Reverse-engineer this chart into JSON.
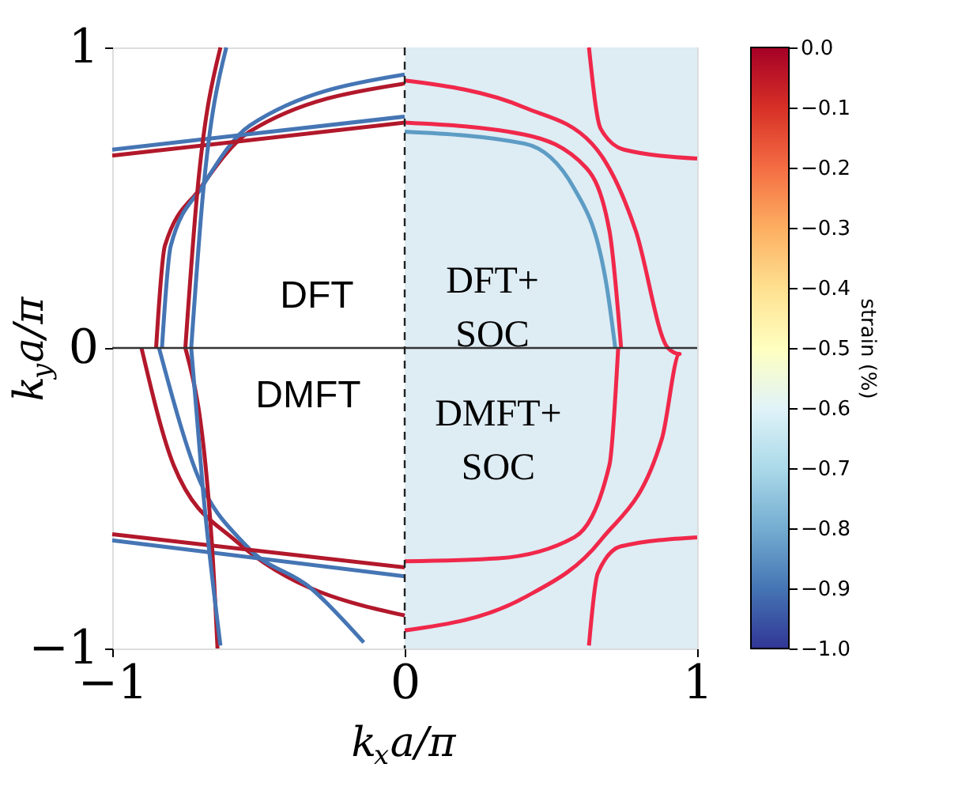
{
  "chart_data": {
    "type": "line",
    "xlabel": "k$_{x}$a/π",
    "ylabel": "k$_{y}$a/π",
    "xlim": [
      -1,
      1
    ],
    "ylim": [
      -1,
      1
    ],
    "xticks": [
      -1,
      0,
      1
    ],
    "yticks": [
      -1,
      0,
      1
    ],
    "grid": false,
    "legend": false,
    "marker": "none",
    "line_style": "solid",
    "clabel": "strain (%)",
    "clim": [
      -1,
      0
    ],
    "cticks": [
      {
        "value": 0,
        "label": "0.0"
      },
      -0.1,
      -0.2,
      -0.3,
      -0.4,
      -0.5,
      -0.6,
      -0.7,
      -0.8,
      -0.9,
      {
        "value": -1,
        "label": "−1.0"
      }
    ],
    "annotations": [
      "DFT",
      "DMFT",
      "DFT+\nSOC",
      "DMFT+\nSOC"
    ],
    "bands": [
      {
        "axis": "x",
        "from": 0,
        "to": 1,
        "color": "#deecf4"
      }
    ],
    "ref_lines": [
      {
        "axis": "y",
        "value": 0,
        "color": "#333333",
        "line_style": "solid"
      },
      {
        "axis": "x",
        "value": 0,
        "color": "#222222",
        "line_style": "dashed"
      }
    ],
    "series": [
      {
        "color": "#b2182b",
        "x": [
          0,
          -0.53,
          -0.7,
          -0.82,
          -0.85
        ],
        "values": [
          0.88,
          0.72,
          0.53,
          0.34,
          0
        ]
      },
      {
        "color": "#4575b4",
        "x": [
          0,
          -0.53,
          -0.69,
          -0.8,
          -0.83
        ],
        "values": [
          0.91,
          0.74,
          0.54,
          0.34,
          0
        ]
      },
      {
        "color": "#b2182b",
        "x": [
          -1,
          0
        ],
        "values": [
          0.64,
          0.75
        ]
      },
      {
        "color": "#4575b4",
        "x": [
          -1,
          0
        ],
        "values": [
          0.66,
          0.77
        ]
      },
      {
        "color": "#b2182b",
        "x": [
          -0.63,
          -0.71,
          -0.75
        ],
        "values": [
          1.0,
          0.51,
          0
        ]
      },
      {
        "color": "#4575b4",
        "x": [
          -0.61,
          -0.69,
          -0.73
        ],
        "values": [
          1.0,
          0.51,
          0
        ]
      },
      {
        "color": "#b2182b",
        "x": [
          -0.9,
          -0.79,
          -0.58,
          0
        ],
        "values": [
          0,
          -0.39,
          -0.64,
          -0.89
        ]
      },
      {
        "color": "#4575b4",
        "x": [
          -0.84,
          -0.71,
          -0.54,
          -0.32,
          -0.14
        ],
        "values": [
          0,
          -0.42,
          -0.66,
          -0.8,
          -0.98
        ]
      },
      {
        "color": "#b2182b",
        "x": [
          -1,
          0
        ],
        "values": [
          -0.62,
          -0.73
        ]
      },
      {
        "color": "#4575b4",
        "x": [
          -1,
          0
        ],
        "values": [
          -0.64,
          -0.76
        ]
      },
      {
        "color": "#b2182b",
        "x": [
          -0.75,
          -0.66,
          -0.64
        ],
        "values": [
          0,
          -0.64,
          -1.0
        ]
      },
      {
        "color": "#4575b4",
        "x": [
          -0.73,
          -0.69,
          -0.63
        ],
        "values": [
          0,
          -0.47,
          -0.99
        ]
      },
      {
        "color": "#5d9cc4",
        "x": [
          0,
          0.41,
          0.58,
          0.69,
          0.72
        ],
        "values": [
          0.72,
          0.68,
          0.53,
          0.21,
          0
        ]
      },
      {
        "color": "#f0284a",
        "x": [
          0,
          0.41,
          0.64,
          0.79,
          0.9,
          0.94,
          0.88,
          0.67,
          0.41,
          0
        ],
        "values": [
          0.89,
          0.8,
          0.68,
          0.39,
          0,
          -0.02,
          -0.3,
          -0.64,
          -0.83,
          -0.94
        ]
      },
      {
        "color": "#f0284a",
        "x": [
          0,
          0.41,
          0.62,
          0.7,
          0.74
        ],
        "values": [
          0.75,
          0.71,
          0.6,
          0.39,
          0
        ]
      },
      {
        "color": "#f0284a",
        "x": [
          0.73,
          0.7,
          0.58,
          0.32,
          0
        ],
        "values": [
          0,
          -0.39,
          -0.63,
          -0.7,
          -0.71
        ]
      },
      {
        "color": "#f0284a",
        "x": [
          0.63,
          0.67,
          0.75,
          1.0
        ],
        "values": [
          1.0,
          0.73,
          0.66,
          0.63
        ]
      },
      {
        "color": "#f0284a",
        "x": [
          1.0,
          0.74,
          0.66,
          0.63
        ],
        "values": [
          -0.63,
          -0.66,
          -0.75,
          -0.99
        ]
      }
    ]
  }
}
